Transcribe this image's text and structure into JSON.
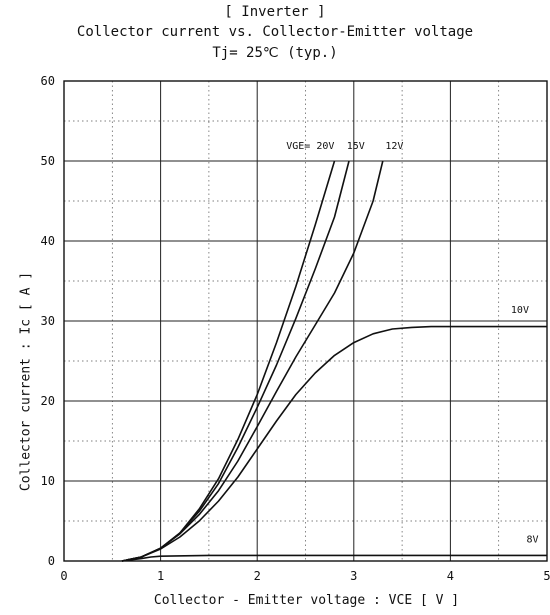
{
  "chart_data": {
    "type": "line",
    "title": "[ Inverter ]",
    "subtitle": "Collector current  vs.  Collector-Emitter voltage",
    "condition": "Tj= 25℃     (typ.)",
    "xlabel": "Collector - Emitter voltage  :  VCE  [ V ]",
    "ylabel": "Collector current  :  Ic  [ A ]",
    "xlim": [
      0,
      5
    ],
    "ylim": [
      0,
      60
    ],
    "xticks": [
      "0",
      "1",
      "2",
      "3",
      "4",
      "5"
    ],
    "yticks": [
      "0",
      "10",
      "20",
      "30",
      "40",
      "50",
      "60"
    ],
    "grid": true,
    "series": [
      {
        "name": "VGE= 20V",
        "x": [
          0.6,
          0.8,
          1.0,
          1.2,
          1.4,
          1.6,
          1.8,
          2.0,
          2.2,
          2.4,
          2.6,
          2.8
        ],
        "y": [
          0,
          0.5,
          1.6,
          3.5,
          6.5,
          10.3,
          15.2,
          20.8,
          27.3,
          34.3,
          42.0,
          50.0
        ]
      },
      {
        "name": "15V",
        "x": [
          0.6,
          0.8,
          1.0,
          1.2,
          1.4,
          1.6,
          1.8,
          2.0,
          2.2,
          2.4,
          2.6,
          2.8,
          2.95
        ],
        "y": [
          0,
          0.5,
          1.6,
          3.5,
          6.2,
          9.7,
          14.2,
          19.2,
          24.5,
          30.3,
          36.5,
          43.0,
          50.0
        ]
      },
      {
        "name": "12V",
        "x": [
          0.6,
          0.8,
          1.0,
          1.2,
          1.4,
          1.6,
          1.8,
          2.0,
          2.2,
          2.4,
          2.6,
          2.8,
          3.0,
          3.2,
          3.3
        ],
        "y": [
          0,
          0.5,
          1.6,
          3.4,
          5.8,
          8.8,
          12.5,
          16.8,
          21.2,
          25.5,
          29.5,
          33.5,
          38.5,
          45.0,
          50.0
        ]
      },
      {
        "name": "10V",
        "x": [
          0.6,
          0.8,
          1.0,
          1.2,
          1.4,
          1.6,
          1.8,
          2.0,
          2.2,
          2.4,
          2.6,
          2.8,
          3.0,
          3.2,
          3.4,
          3.6,
          3.8,
          4.0,
          5.0
        ],
        "y": [
          0,
          0.5,
          1.5,
          3.0,
          5.0,
          7.5,
          10.5,
          14.0,
          17.5,
          20.8,
          23.5,
          25.7,
          27.3,
          28.4,
          29.0,
          29.2,
          29.3,
          29.3,
          29.3
        ]
      },
      {
        "name": "8V",
        "x": [
          0.6,
          0.8,
          0.9,
          1.0,
          1.5,
          2.0,
          3.0,
          4.0,
          5.0
        ],
        "y": [
          0,
          0.3,
          0.5,
          0.6,
          0.7,
          0.7,
          0.7,
          0.7,
          0.7
        ]
      }
    ],
    "annotations": [
      {
        "text": "VGE= 20V",
        "x": 2.55,
        "y": 51.5
      },
      {
        "text": "15V",
        "x": 3.02,
        "y": 51.5
      },
      {
        "text": "12V",
        "x": 3.42,
        "y": 51.5
      },
      {
        "text": "10V",
        "x": 4.72,
        "y": 31.0
      },
      {
        "text": "8V",
        "x": 4.85,
        "y": 2.3
      }
    ]
  }
}
